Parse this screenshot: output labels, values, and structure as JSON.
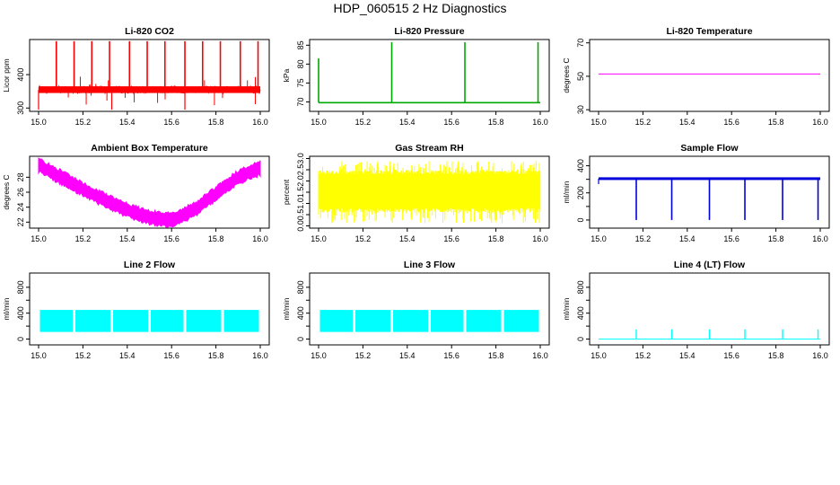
{
  "page_title": "HDP_060515  2 Hz Diagnostics",
  "chart_data": [
    {
      "type": "line",
      "title": "Li-820 CO2",
      "xlabel": "",
      "ylabel": "Licor ppm",
      "color": "#ff0000",
      "xlim": [
        15.0,
        16.0
      ],
      "ylim": [
        290,
        505
      ],
      "x_ticks": [
        15.0,
        15.2,
        15.4,
        15.6,
        15.8,
        16.0
      ],
      "y_ticks": [
        300,
        400
      ],
      "x_tick_labels": [
        "15.0",
        "15.2",
        "15.4",
        "15.6",
        "15.8",
        "16.0"
      ],
      "y_tick_labels": [
        "300",
        "400"
      ],
      "series": [
        {
          "baseline": 355,
          "band": [
            345,
            365
          ],
          "spikes_x": [
            15.08,
            15.16,
            15.24,
            15.32,
            15.41,
            15.49,
            15.57,
            15.66,
            15.74,
            15.82,
            15.91,
            15.99
          ],
          "spikes_peak": 500,
          "dips_x": [
            15.0,
            15.33,
            15.66
          ],
          "dip_min": 295
        }
      ]
    },
    {
      "type": "line",
      "title": "Li-820 Pressure",
      "xlabel": "",
      "ylabel": "kPa",
      "color": "#00aa00",
      "xlim": [
        15.0,
        16.0
      ],
      "ylim": [
        67.5,
        86.5
      ],
      "x_ticks": [
        15.0,
        15.2,
        15.4,
        15.6,
        15.8,
        16.0
      ],
      "y_ticks": [
        70,
        75,
        80,
        85
      ],
      "x_tick_labels": [
        "15.0",
        "15.2",
        "15.4",
        "15.6",
        "15.8",
        "16.0"
      ],
      "y_tick_labels": [
        "70",
        "75",
        "80",
        "85"
      ],
      "series": [
        {
          "baseline": 69.8,
          "spikes_x": [
            15.0,
            15.33,
            15.66,
            15.99
          ],
          "spikes_peak": 85.8
        }
      ]
    },
    {
      "type": "line",
      "title": "Li-820 Temperature",
      "xlabel": "",
      "ylabel": "degrees C",
      "color": "#ff00ff",
      "xlim": [
        15.0,
        16.0
      ],
      "ylim": [
        29,
        72
      ],
      "x_ticks": [
        15.0,
        15.2,
        15.4,
        15.6,
        15.8,
        16.0
      ],
      "y_ticks": [
        30,
        50,
        70
      ],
      "x_tick_labels": [
        "15.0",
        "15.2",
        "15.4",
        "15.6",
        "15.8",
        "16.0"
      ],
      "y_tick_labels": [
        "30",
        "50",
        "70"
      ],
      "series": [
        {
          "x": [
            15.0,
            16.0
          ],
          "y": [
            51.4,
            51.4
          ]
        }
      ]
    },
    {
      "type": "line",
      "title": "Ambient Box Temperature",
      "xlabel": "",
      "ylabel": "degrees C",
      "color": "#ff00ff",
      "xlim": [
        15.0,
        16.0
      ],
      "ylim": [
        21.2,
        30.8
      ],
      "x_ticks": [
        15.0,
        15.2,
        15.4,
        15.6,
        15.8,
        16.0
      ],
      "y_ticks": [
        22,
        24,
        26,
        28
      ],
      "x_tick_labels": [
        "15.0",
        "15.2",
        "15.4",
        "15.6",
        "15.8",
        "16.0"
      ],
      "y_tick_labels": [
        "22",
        "24",
        "26",
        "28"
      ],
      "series": [
        {
          "x": [
            15.0,
            15.1,
            15.2,
            15.3,
            15.4,
            15.5,
            15.6,
            15.7,
            15.8,
            15.9,
            16.0
          ],
          "y": [
            29.6,
            28.0,
            26.4,
            24.9,
            23.6,
            22.6,
            22.3,
            23.6,
            25.8,
            28.0,
            29.2
          ],
          "band": 0.9
        }
      ]
    },
    {
      "type": "line",
      "title": "Gas Stream RH",
      "xlabel": "",
      "ylabel": "percent",
      "color": "#ffff00",
      "xlim": [
        15.0,
        16.0
      ],
      "ylim": [
        -0.1,
        3.1
      ],
      "x_ticks": [
        15.0,
        15.2,
        15.4,
        15.6,
        15.8,
        16.0
      ],
      "y_ticks": [
        0.0,
        0.5,
        1.0,
        1.5,
        2.0,
        2.5,
        3.0
      ],
      "x_tick_labels": [
        "15.0",
        "15.2",
        "15.4",
        "15.6",
        "15.8",
        "16.0"
      ],
      "y_tick_labels": [
        "0.0",
        "0.5",
        "1.0",
        "1.5",
        "2.0",
        "2.5",
        "3.0"
      ],
      "series": [
        {
          "mean": 1.5,
          "band": [
            0.8,
            2.3
          ],
          "extremes": [
            0.1,
            2.9
          ]
        }
      ]
    },
    {
      "type": "line",
      "title": "Sample Flow",
      "xlabel": "",
      "ylabel": "ml/min",
      "color": "#0000dd",
      "xlim": [
        15.0,
        16.0
      ],
      "ylim": [
        -60,
        470
      ],
      "x_ticks": [
        15.0,
        15.2,
        15.4,
        15.6,
        15.8,
        16.0
      ],
      "y_ticks": [
        0,
        100,
        200,
        300,
        400
      ],
      "x_tick_labels": [
        "15.0",
        "15.2",
        "15.4",
        "15.6",
        "15.8",
        "16.0"
      ],
      "y_tick_labels": [
        "0",
        "",
        "200",
        "",
        "400"
      ],
      "series": [
        {
          "baseline": 305,
          "dips_x": [
            15.17,
            15.33,
            15.5,
            15.66,
            15.83,
            15.99
          ],
          "dip_min": 0
        }
      ]
    },
    {
      "type": "line",
      "title": "Line 2 Flow",
      "xlabel": "",
      "ylabel": "ml/min",
      "color": "#00ffff",
      "xlim": [
        15.0,
        16.0
      ],
      "ylim": [
        -90,
        1020
      ],
      "x_ticks": [
        15.0,
        15.2,
        15.4,
        15.6,
        15.8,
        16.0
      ],
      "y_ticks": [
        0,
        200,
        400,
        600,
        800
      ],
      "x_tick_labels": [
        "15.0",
        "15.2",
        "15.4",
        "15.6",
        "15.8",
        "16.0"
      ],
      "y_tick_labels": [
        "0",
        "",
        "400",
        "",
        "800"
      ],
      "series": [
        {
          "band": [
            110,
            450
          ],
          "gaps_x": [
            15.16,
            15.33,
            15.5,
            15.66,
            15.83
          ]
        }
      ]
    },
    {
      "type": "line",
      "title": "Line 3 Flow",
      "xlabel": "",
      "ylabel": "ml/min",
      "color": "#00ffff",
      "xlim": [
        15.0,
        16.0
      ],
      "ylim": [
        -90,
        1020
      ],
      "x_ticks": [
        15.0,
        15.2,
        15.4,
        15.6,
        15.8,
        16.0
      ],
      "y_ticks": [
        0,
        200,
        400,
        600,
        800
      ],
      "x_tick_labels": [
        "15.0",
        "15.2",
        "15.4",
        "15.6",
        "15.8",
        "16.0"
      ],
      "y_tick_labels": [
        "0",
        "",
        "400",
        "",
        "800"
      ],
      "series": [
        {
          "band": [
            110,
            450
          ],
          "gaps_x": [
            15.16,
            15.33,
            15.5,
            15.66,
            15.83
          ]
        }
      ]
    },
    {
      "type": "line",
      "title": "Line 4 (LT) Flow",
      "xlabel": "",
      "ylabel": "ml/min",
      "color": "#00ffff",
      "xlim": [
        15.0,
        16.0
      ],
      "ylim": [
        -90,
        1020
      ],
      "x_ticks": [
        15.0,
        15.2,
        15.4,
        15.6,
        15.8,
        16.0
      ],
      "y_ticks": [
        0,
        200,
        400,
        600,
        800
      ],
      "x_tick_labels": [
        "15.0",
        "15.2",
        "15.4",
        "15.6",
        "15.8",
        "16.0"
      ],
      "y_tick_labels": [
        "0",
        "",
        "400",
        "",
        "800"
      ],
      "series": [
        {
          "baseline": 0,
          "spikes_x": [
            15.17,
            15.33,
            15.5,
            15.66,
            15.83,
            15.99
          ],
          "spikes_peak": 150
        }
      ]
    }
  ]
}
